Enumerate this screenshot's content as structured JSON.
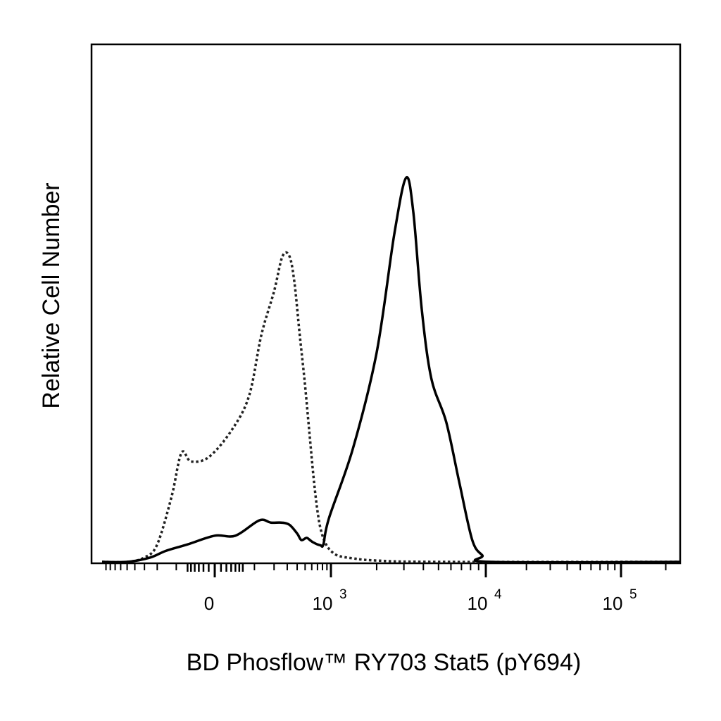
{
  "chart_data": {
    "type": "area",
    "xlabel": "BD Phosflow™ RY703 Stat5 (pY694)",
    "ylabel": "Relative Cell Number",
    "x_scale": "biexponential",
    "x_ticks": [
      {
        "value": 0,
        "base": "0",
        "exp": ""
      },
      {
        "value": 1000,
        "base": "10",
        "exp": "3"
      },
      {
        "value": 10000,
        "base": "10",
        "exp": "4"
      },
      {
        "value": 100000,
        "base": "10",
        "exp": "5"
      }
    ],
    "xlim": [
      -1000,
      250000
    ],
    "ylim": [
      0,
      100
    ],
    "grid": false,
    "legend": "none",
    "series": [
      {
        "style": "dotted",
        "color": "#222222",
        "points": [
          [
            -1000,
            0
          ],
          [
            -500,
            0
          ],
          [
            -300,
            1
          ],
          [
            -200,
            4
          ],
          [
            -120,
            15
          ],
          [
            -80,
            25
          ],
          [
            -50,
            23
          ],
          [
            -10,
            24
          ],
          [
            30,
            30
          ],
          [
            80,
            38
          ],
          [
            130,
            52
          ],
          [
            200,
            62
          ],
          [
            260,
            70
          ],
          [
            320,
            70
          ],
          [
            370,
            64
          ],
          [
            430,
            52
          ],
          [
            490,
            42
          ],
          [
            560,
            30
          ],
          [
            640,
            18
          ],
          [
            720,
            10
          ],
          [
            800,
            6
          ],
          [
            880,
            4
          ],
          [
            950,
            3
          ],
          [
            1100,
            1.5
          ],
          [
            1400,
            0.8
          ],
          [
            2000,
            0.3
          ],
          [
            5000,
            0
          ],
          [
            250000,
            0
          ]
        ]
      },
      {
        "style": "solid",
        "color": "#000000",
        "points": [
          [
            -1000,
            0
          ],
          [
            -500,
            0
          ],
          [
            -250,
            1
          ],
          [
            -150,
            2.5
          ],
          [
            -60,
            4
          ],
          [
            0,
            6
          ],
          [
            40,
            6
          ],
          [
            120,
            9.5
          ],
          [
            180,
            9
          ],
          [
            250,
            9
          ],
          [
            320,
            8.5
          ],
          [
            400,
            6.5
          ],
          [
            450,
            5
          ],
          [
            520,
            5.5
          ],
          [
            570,
            5
          ],
          [
            620,
            4.5
          ],
          [
            700,
            4
          ],
          [
            760,
            3.8
          ],
          [
            820,
            4
          ],
          [
            950,
            10
          ],
          [
            1400,
            26
          ],
          [
            2000,
            48
          ],
          [
            2600,
            75
          ],
          [
            3100,
            88
          ],
          [
            3450,
            80
          ],
          [
            3900,
            58
          ],
          [
            4500,
            42
          ],
          [
            5600,
            32
          ],
          [
            6800,
            18
          ],
          [
            8200,
            5
          ],
          [
            9500,
            1.5
          ],
          [
            11000,
            0
          ],
          [
            250000,
            0
          ]
        ]
      }
    ]
  }
}
